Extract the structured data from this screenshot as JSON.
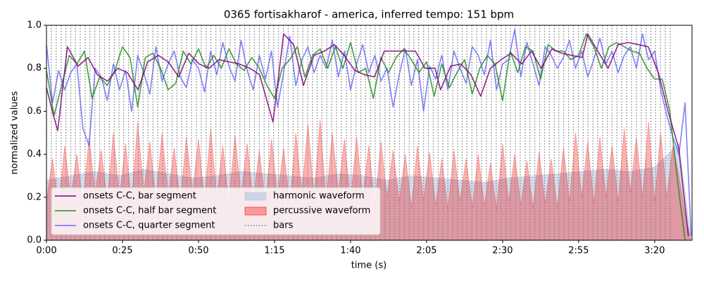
{
  "chart_data": {
    "type": "mixed",
    "title": "0365 fortisakharof - america, inferred tempo: 151 bpm",
    "xlabel": "time (s)",
    "ylabel": "normalized values",
    "xlim": [
      0,
      212.3
    ],
    "ylim": [
      0,
      1
    ],
    "xticks": [
      {
        "value": 0,
        "label": "0:00"
      },
      {
        "value": 25,
        "label": "0:25"
      },
      {
        "value": 50,
        "label": "0:50"
      },
      {
        "value": 75,
        "label": "1:15"
      },
      {
        "value": 100,
        "label": "1:40"
      },
      {
        "value": 125,
        "label": "2:05"
      },
      {
        "value": 150,
        "label": "2:30"
      },
      {
        "value": 175,
        "label": "2:55"
      },
      {
        "value": 200,
        "label": "3:20"
      }
    ],
    "yticks": [
      {
        "value": 0,
        "label": "0.0"
      },
      0.2,
      0.4,
      0.6,
      0.8,
      {
        "value": 1,
        "label": "1.0"
      }
    ],
    "legend": "lower left",
    "series": [
      {
        "name": "harmonic waveform",
        "style": "area",
        "color": "#b0c4de",
        "x": [
          0,
          8,
          16,
          24,
          32,
          40,
          48,
          56,
          64,
          72,
          80,
          88,
          96,
          104,
          112,
          120,
          128,
          136,
          144,
          152,
          160,
          168,
          176,
          184,
          192,
          200,
          208,
          212
        ],
        "values": [
          0.28,
          0.3,
          0.32,
          0.3,
          0.33,
          0.31,
          0.29,
          0.3,
          0.32,
          0.31,
          0.3,
          0.29,
          0.31,
          0.3,
          0.28,
          0.3,
          0.29,
          0.28,
          0.27,
          0.29,
          0.3,
          0.31,
          0.32,
          0.33,
          0.32,
          0.34,
          0.45,
          0.0
        ]
      },
      {
        "name": "percussive waveform",
        "style": "area",
        "color": "#ff0000",
        "x": [
          0,
          2,
          4,
          6,
          8,
          10,
          12,
          14,
          16,
          18,
          20,
          22,
          24,
          26,
          28,
          30,
          32,
          34,
          36,
          38,
          40,
          42,
          44,
          46,
          48,
          50,
          52,
          54,
          56,
          58,
          60,
          62,
          64,
          66,
          68,
          70,
          72,
          74,
          76,
          78,
          80,
          82,
          84,
          86,
          88,
          90,
          92,
          94,
          96,
          98,
          100,
          102,
          104,
          106,
          108,
          110,
          112,
          114,
          116,
          118,
          120,
          122,
          124,
          126,
          128,
          130,
          132,
          134,
          136,
          138,
          140,
          142,
          144,
          146,
          148,
          150,
          152,
          154,
          156,
          158,
          160,
          162,
          164,
          166,
          168,
          170,
          172,
          174,
          176,
          178,
          180,
          182,
          184,
          186,
          188,
          190,
          192,
          194,
          196,
          198,
          200,
          202,
          204,
          206,
          208,
          210,
          212
        ],
        "values": [
          0.18,
          0.38,
          0.15,
          0.44,
          0.2,
          0.4,
          0.16,
          0.48,
          0.22,
          0.42,
          0.18,
          0.5,
          0.2,
          0.45,
          0.17,
          0.55,
          0.22,
          0.46,
          0.18,
          0.5,
          0.2,
          0.43,
          0.17,
          0.48,
          0.22,
          0.47,
          0.18,
          0.52,
          0.2,
          0.44,
          0.17,
          0.49,
          0.21,
          0.45,
          0.18,
          0.42,
          0.16,
          0.47,
          0.2,
          0.43,
          0.16,
          0.5,
          0.22,
          0.54,
          0.2,
          0.56,
          0.18,
          0.5,
          0.22,
          0.47,
          0.18,
          0.48,
          0.2,
          0.44,
          0.16,
          0.46,
          0.2,
          0.42,
          0.18,
          0.4,
          0.15,
          0.44,
          0.18,
          0.41,
          0.16,
          0.38,
          0.14,
          0.42,
          0.18,
          0.38,
          0.15,
          0.4,
          0.16,
          0.36,
          0.14,
          0.45,
          0.18,
          0.4,
          0.16,
          0.37,
          0.15,
          0.41,
          0.17,
          0.38,
          0.15,
          0.43,
          0.18,
          0.5,
          0.2,
          0.46,
          0.17,
          0.48,
          0.2,
          0.44,
          0.18,
          0.52,
          0.22,
          0.48,
          0.2,
          0.55,
          0.18,
          0.5,
          0.2,
          0.44,
          0.3,
          0.12,
          0.0
        ]
      },
      {
        "name": "bars",
        "style": "vlines",
        "color": "#808080",
        "x": [
          0,
          1.6,
          3.2,
          4.8,
          6.4,
          8.0,
          9.5,
          11.1,
          12.7,
          14.3,
          15.9,
          17.5,
          19.1,
          20.7,
          22.3,
          23.9,
          25.4,
          27.0,
          28.6,
          30.2,
          31.8,
          33.4,
          35.0,
          36.6,
          38.2,
          39.8,
          41.3,
          42.9,
          44.5,
          46.1,
          47.7,
          49.3,
          50.9,
          52.5,
          54.1,
          55.7,
          57.2,
          58.8,
          60.4,
          62.0,
          63.6,
          65.2,
          66.8,
          68.4,
          70.0,
          71.6,
          73.1,
          74.7,
          76.3,
          77.9,
          79.5,
          81.1,
          82.7,
          84.3,
          85.9,
          87.5,
          89.0,
          90.6,
          92.2,
          93.8,
          95.4,
          97.0,
          98.6,
          100.2,
          101.8,
          103.4,
          104.9,
          106.5,
          108.1,
          109.7,
          111.3,
          112.9,
          114.5,
          116.1,
          117.7,
          119.3,
          120.8,
          122.4,
          124.0,
          125.6,
          127.2,
          128.8,
          130.4,
          132.0,
          133.6,
          135.2,
          136.7,
          138.3,
          139.9,
          141.5,
          143.1,
          144.7,
          146.3,
          147.9,
          149.5,
          151.1,
          152.6,
          154.2,
          155.8,
          157.4,
          159.0,
          160.6,
          162.2,
          163.8,
          165.4,
          167.0,
          168.5,
          170.1,
          171.7,
          173.3,
          174.9,
          176.5,
          178.1,
          179.7,
          181.3,
          182.9,
          184.4,
          186.0,
          187.6,
          189.2,
          190.8,
          192.4,
          194.0,
          195.6,
          197.2,
          198.8,
          200.3,
          201.9,
          203.5,
          205.1
        ]
      },
      {
        "name": "onsets C-C, quarter segment",
        "style": "line",
        "color": "#6b6bf5",
        "x": [
          0,
          2,
          4,
          6,
          8,
          10,
          12,
          14,
          16,
          18,
          20,
          22,
          24,
          26,
          28,
          30,
          32,
          34,
          36,
          38,
          40,
          42,
          44,
          46,
          48,
          50,
          52,
          54,
          56,
          58,
          60,
          62,
          64,
          66,
          68,
          70,
          72,
          74,
          76,
          78,
          80,
          82,
          84,
          86,
          88,
          90,
          92,
          94,
          96,
          98,
          100,
          102,
          104,
          106,
          108,
          110,
          112,
          114,
          116,
          118,
          120,
          122,
          124,
          126,
          128,
          130,
          132,
          134,
          136,
          138,
          140,
          142,
          144,
          146,
          148,
          150,
          152,
          154,
          156,
          158,
          160,
          162,
          164,
          166,
          168,
          170,
          172,
          174,
          176,
          178,
          180,
          182,
          184,
          186,
          188,
          190,
          192,
          194,
          196,
          198,
          200,
          202,
          204,
          206,
          208,
          210,
          212
        ],
        "values": [
          0.91,
          0.64,
          0.79,
          0.7,
          0.78,
          0.82,
          0.52,
          0.44,
          0.8,
          0.76,
          0.65,
          0.82,
          0.7,
          0.79,
          0.6,
          0.86,
          0.78,
          0.68,
          0.9,
          0.74,
          0.82,
          0.88,
          0.76,
          0.71,
          0.84,
          0.8,
          0.69,
          0.88,
          0.77,
          0.92,
          0.81,
          0.74,
          0.93,
          0.79,
          0.7,
          0.86,
          0.75,
          0.88,
          0.62,
          0.78,
          0.95,
          0.72,
          0.84,
          0.9,
          0.78,
          0.86,
          0.8,
          0.93,
          0.76,
          0.88,
          0.7,
          0.82,
          0.91,
          0.78,
          0.86,
          0.74,
          0.8,
          0.62,
          0.77,
          0.89,
          0.72,
          0.84,
          0.6,
          0.81,
          0.75,
          0.86,
          0.7,
          0.88,
          0.8,
          0.73,
          0.9,
          0.86,
          0.77,
          0.93,
          0.7,
          0.82,
          0.84,
          0.98,
          0.76,
          0.92,
          0.82,
          0.72,
          0.9,
          0.86,
          0.8,
          0.85,
          0.93,
          0.8,
          0.88,
          0.76,
          0.84,
          0.94,
          0.82,
          0.88,
          0.78,
          0.86,
          0.9,
          0.8,
          0.96,
          0.84,
          0.88,
          0.7,
          0.58,
          0.48,
          0.4,
          0.64,
          0.02
        ]
      },
      {
        "name": "onsets C-C, half bar segment",
        "style": "line",
        "color": "#228b22",
        "x": [
          0,
          2.5,
          5,
          7.5,
          10,
          12.5,
          15,
          17.5,
          20,
          22.5,
          25,
          27.5,
          30,
          32.5,
          35,
          37.5,
          40,
          42.5,
          45,
          47.5,
          50,
          52.5,
          55,
          57.5,
          60,
          62.5,
          65,
          67.5,
          70,
          72.5,
          75,
          77.5,
          80,
          82.5,
          85,
          87.5,
          90,
          92.5,
          95,
          97.5,
          100,
          102.5,
          105,
          107.5,
          110,
          112.5,
          115,
          117.5,
          120,
          122.5,
          125,
          127.5,
          130,
          132.5,
          135,
          137.5,
          140,
          142.5,
          145,
          147.5,
          150,
          152.5,
          155,
          157.5,
          160,
          162.5,
          165,
          167.5,
          170,
          172.5,
          175,
          177.5,
          180,
          182.5,
          185,
          187.5,
          190,
          192.5,
          195,
          197.5,
          200,
          202.5,
          205,
          207.5,
          210
        ],
        "values": [
          0.79,
          0.58,
          0.72,
          0.86,
          0.82,
          0.88,
          0.66,
          0.76,
          0.72,
          0.79,
          0.9,
          0.85,
          0.62,
          0.85,
          0.87,
          0.8,
          0.7,
          0.73,
          0.88,
          0.82,
          0.89,
          0.8,
          0.86,
          0.8,
          0.89,
          0.82,
          0.79,
          0.85,
          0.8,
          0.72,
          0.66,
          0.8,
          0.84,
          0.9,
          0.76,
          0.86,
          0.89,
          0.8,
          0.9,
          0.8,
          0.92,
          0.78,
          0.8,
          0.66,
          0.85,
          0.78,
          0.85,
          0.89,
          0.84,
          0.78,
          0.83,
          0.67,
          0.82,
          0.71,
          0.78,
          0.84,
          0.68,
          0.8,
          0.86,
          0.82,
          0.65,
          0.88,
          0.78,
          0.9,
          0.88,
          0.75,
          0.91,
          0.88,
          0.88,
          0.84,
          0.86,
          0.96,
          0.9,
          0.8,
          0.9,
          0.92,
          0.9,
          0.88,
          0.87,
          0.8,
          0.75,
          0.75,
          0.6,
          0.28,
          0.0
        ]
      },
      {
        "name": "onsets C-C, bar segment",
        "style": "line",
        "color": "#800080",
        "x": [
          0,
          2.3,
          3.7,
          6.9,
          10.4,
          13.7,
          16.7,
          20.1,
          23.4,
          26.6,
          30.1,
          33.3,
          36.8,
          40,
          43.5,
          46.8,
          50.2,
          53.5,
          56.7,
          60,
          63.4,
          66.9,
          70.1,
          74.5,
          78,
          81.3,
          84.5,
          88,
          91.4,
          94.7,
          97.9,
          101.4,
          104.6,
          107.9,
          111.1,
          114.6,
          117.8,
          121.3,
          124.5,
          127.8,
          129.6,
          132.9,
          136.3,
          139.6,
          142.8,
          146,
          149.5,
          152.8,
          156.3,
          159.5,
          162.7,
          166.2,
          169.4,
          172.7,
          176.2,
          178,
          181.3,
          184.7,
          188,
          191.4,
          194.7,
          197.9,
          201.2,
          204.6,
          207.9,
          211.1
        ],
        "values": [
          0.71,
          0.58,
          0.51,
          0.9,
          0.81,
          0.85,
          0.77,
          0.74,
          0.8,
          0.78,
          0.7,
          0.83,
          0.86,
          0.83,
          0.76,
          0.87,
          0.82,
          0.8,
          0.84,
          0.83,
          0.82,
          0.8,
          0.77,
          0.55,
          0.96,
          0.91,
          0.72,
          0.86,
          0.88,
          0.91,
          0.86,
          0.79,
          0.77,
          0.76,
          0.88,
          0.88,
          0.88,
          0.88,
          0.8,
          0.8,
          0.7,
          0.81,
          0.82,
          0.77,
          0.67,
          0.8,
          0.84,
          0.87,
          0.82,
          0.88,
          0.8,
          0.89,
          0.87,
          0.86,
          0.85,
          0.96,
          0.88,
          0.8,
          0.91,
          0.92,
          0.91,
          0.9,
          0.78,
          0.59,
          0.43,
          0.02
        ]
      }
    ]
  }
}
